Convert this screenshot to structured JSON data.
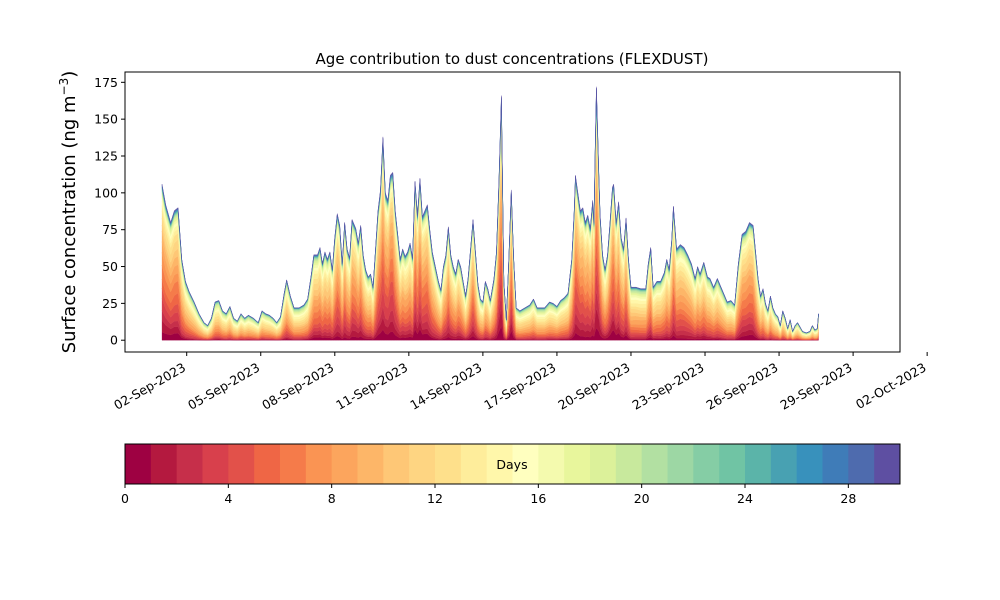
{
  "chart_data": {
    "type": "area",
    "stacked": true,
    "title": "Age contribution to dust concentrations (FLEXDUST)",
    "ylabel_main": "Surface concentration (ng m",
    "ylabel_sup": "−3",
    "ylabel_close": ")",
    "xlabel": "",
    "ylim": [
      -8,
      182
    ],
    "xlim": [
      -1.5,
      29.9
    ],
    "yticks": [
      0,
      25,
      50,
      75,
      100,
      125,
      150,
      175
    ],
    "xtick_positions": [
      1,
      4,
      7,
      10,
      13,
      16,
      19,
      22,
      25,
      28,
      31
    ],
    "xtick_labels": [
      "02-Sep-2023",
      "05-Sep-2023",
      "08-Sep-2023",
      "11-Sep-2023",
      "14-Sep-2023",
      "17-Sep-2023",
      "20-Sep-2023",
      "23-Sep-2023",
      "26-Sep-2023",
      "29-Sep-2023",
      "02-Oct-2023"
    ],
    "x_unit": "days since 01-Sep-2023",
    "grid": false,
    "total": [
      [
        0.0,
        106
      ],
      [
        0.15,
        92
      ],
      [
        0.35,
        80
      ],
      [
        0.5,
        88
      ],
      [
        0.65,
        90
      ],
      [
        0.8,
        55
      ],
      [
        0.95,
        40
      ],
      [
        1.1,
        33
      ],
      [
        1.3,
        26
      ],
      [
        1.5,
        18
      ],
      [
        1.7,
        12
      ],
      [
        1.85,
        10
      ],
      [
        2.0,
        15
      ],
      [
        2.15,
        26
      ],
      [
        2.3,
        27
      ],
      [
        2.45,
        20
      ],
      [
        2.6,
        18
      ],
      [
        2.75,
        23
      ],
      [
        2.9,
        15
      ],
      [
        3.05,
        13
      ],
      [
        3.2,
        18
      ],
      [
        3.35,
        15
      ],
      [
        3.5,
        17
      ],
      [
        3.7,
        15
      ],
      [
        3.9,
        12
      ],
      [
        4.05,
        20
      ],
      [
        4.2,
        18
      ],
      [
        4.35,
        17
      ],
      [
        4.5,
        15
      ],
      [
        4.65,
        12
      ],
      [
        4.8,
        16
      ],
      [
        4.95,
        32
      ],
      [
        5.05,
        41
      ],
      [
        5.2,
        30
      ],
      [
        5.35,
        22
      ],
      [
        5.55,
        22
      ],
      [
        5.75,
        24
      ],
      [
        5.9,
        28
      ],
      [
        6.05,
        45
      ],
      [
        6.15,
        58
      ],
      [
        6.3,
        58
      ],
      [
        6.4,
        63
      ],
      [
        6.5,
        52
      ],
      [
        6.6,
        60
      ],
      [
        6.7,
        55
      ],
      [
        6.8,
        60
      ],
      [
        6.9,
        48
      ],
      [
        7.0,
        70
      ],
      [
        7.1,
        86
      ],
      [
        7.2,
        78
      ],
      [
        7.3,
        52
      ],
      [
        7.4,
        80
      ],
      [
        7.5,
        62
      ],
      [
        7.6,
        56
      ],
      [
        7.7,
        82
      ],
      [
        7.85,
        76
      ],
      [
        7.95,
        66
      ],
      [
        8.05,
        78
      ],
      [
        8.15,
        58
      ],
      [
        8.25,
        48
      ],
      [
        8.35,
        43
      ],
      [
        8.45,
        45
      ],
      [
        8.55,
        36
      ],
      [
        8.65,
        62
      ],
      [
        8.75,
        88
      ],
      [
        8.85,
        102
      ],
      [
        8.95,
        138
      ],
      [
        9.05,
        100
      ],
      [
        9.15,
        95
      ],
      [
        9.25,
        112
      ],
      [
        9.35,
        114
      ],
      [
        9.45,
        88
      ],
      [
        9.55,
        72
      ],
      [
        9.65,
        55
      ],
      [
        9.75,
        62
      ],
      [
        9.85,
        57
      ],
      [
        9.95,
        60
      ],
      [
        10.05,
        66
      ],
      [
        10.15,
        56
      ],
      [
        10.25,
        108
      ],
      [
        10.35,
        85
      ],
      [
        10.45,
        110
      ],
      [
        10.55,
        84
      ],
      [
        10.65,
        88
      ],
      [
        10.75,
        92
      ],
      [
        10.85,
        75
      ],
      [
        10.95,
        60
      ],
      [
        11.1,
        48
      ],
      [
        11.2,
        40
      ],
      [
        11.3,
        34
      ],
      [
        11.4,
        50
      ],
      [
        11.5,
        58
      ],
      [
        11.6,
        77
      ],
      [
        11.7,
        58
      ],
      [
        11.8,
        50
      ],
      [
        11.9,
        45
      ],
      [
        12.0,
        55
      ],
      [
        12.1,
        50
      ],
      [
        12.2,
        40
      ],
      [
        12.3,
        30
      ],
      [
        12.4,
        42
      ],
      [
        12.5,
        62
      ],
      [
        12.6,
        82
      ],
      [
        12.7,
        60
      ],
      [
        12.8,
        38
      ],
      [
        12.9,
        28
      ],
      [
        13.0,
        26
      ],
      [
        13.1,
        40
      ],
      [
        13.2,
        35
      ],
      [
        13.3,
        27
      ],
      [
        13.45,
        42
      ],
      [
        13.55,
        60
      ],
      [
        13.65,
        108
      ],
      [
        13.75,
        166
      ],
      [
        13.85,
        40
      ],
      [
        13.95,
        14
      ],
      [
        14.05,
        55
      ],
      [
        14.15,
        102
      ],
      [
        14.25,
        55
      ],
      [
        14.35,
        22
      ],
      [
        14.5,
        20
      ],
      [
        14.7,
        22
      ],
      [
        14.9,
        24
      ],
      [
        15.05,
        28
      ],
      [
        15.2,
        22
      ],
      [
        15.35,
        22
      ],
      [
        15.5,
        22
      ],
      [
        15.7,
        26
      ],
      [
        15.85,
        25
      ],
      [
        16.0,
        23
      ],
      [
        16.15,
        27
      ],
      [
        16.3,
        29
      ],
      [
        16.45,
        32
      ],
      [
        16.6,
        55
      ],
      [
        16.7,
        88
      ],
      [
        16.75,
        112
      ],
      [
        16.85,
        100
      ],
      [
        16.95,
        88
      ],
      [
        17.05,
        90
      ],
      [
        17.15,
        80
      ],
      [
        17.25,
        85
      ],
      [
        17.35,
        76
      ],
      [
        17.45,
        95
      ],
      [
        17.5,
        80
      ],
      [
        17.55,
        130
      ],
      [
        17.6,
        172
      ],
      [
        17.7,
        112
      ],
      [
        17.75,
        85
      ],
      [
        17.85,
        58
      ],
      [
        17.95,
        48
      ],
      [
        18.05,
        58
      ],
      [
        18.15,
        80
      ],
      [
        18.25,
        104
      ],
      [
        18.3,
        106
      ],
      [
        18.4,
        80
      ],
      [
        18.5,
        94
      ],
      [
        18.6,
        70
      ],
      [
        18.7,
        62
      ],
      [
        18.8,
        83
      ],
      [
        18.9,
        55
      ],
      [
        19.0,
        36
      ],
      [
        19.2,
        36
      ],
      [
        19.4,
        35
      ],
      [
        19.6,
        35
      ],
      [
        19.7,
        52
      ],
      [
        19.8,
        63
      ],
      [
        19.9,
        36
      ],
      [
        20.05,
        40
      ],
      [
        20.2,
        40
      ],
      [
        20.35,
        46
      ],
      [
        20.45,
        55
      ],
      [
        20.55,
        48
      ],
      [
        20.65,
        68
      ],
      [
        20.72,
        91
      ],
      [
        20.85,
        62
      ],
      [
        21.0,
        65
      ],
      [
        21.15,
        63
      ],
      [
        21.3,
        58
      ],
      [
        21.45,
        52
      ],
      [
        21.6,
        42
      ],
      [
        21.7,
        50
      ],
      [
        21.8,
        45
      ],
      [
        21.95,
        53
      ],
      [
        22.1,
        43
      ],
      [
        22.2,
        42
      ],
      [
        22.35,
        36
      ],
      [
        22.5,
        42
      ],
      [
        22.6,
        38
      ],
      [
        22.75,
        32
      ],
      [
        22.9,
        26
      ],
      [
        23.05,
        27
      ],
      [
        23.2,
        24
      ],
      [
        23.35,
        52
      ],
      [
        23.5,
        72
      ],
      [
        23.65,
        74
      ],
      [
        23.8,
        80
      ],
      [
        23.95,
        78
      ],
      [
        24.05,
        60
      ],
      [
        24.15,
        42
      ],
      [
        24.25,
        30
      ],
      [
        24.35,
        35
      ],
      [
        24.45,
        25
      ],
      [
        24.55,
        20
      ],
      [
        24.65,
        30
      ],
      [
        24.75,
        22
      ],
      [
        24.85,
        18
      ],
      [
        24.95,
        16
      ],
      [
        25.05,
        10
      ],
      [
        25.15,
        20
      ],
      [
        25.25,
        15
      ],
      [
        25.35,
        8
      ],
      [
        25.45,
        14
      ],
      [
        25.55,
        6
      ],
      [
        25.65,
        10
      ],
      [
        25.75,
        12
      ],
      [
        25.85,
        9
      ],
      [
        25.95,
        6
      ],
      [
        26.1,
        5
      ],
      [
        26.25,
        6
      ],
      [
        26.35,
        10
      ],
      [
        26.45,
        7
      ],
      [
        26.55,
        8
      ],
      [
        26.6,
        18
      ]
    ],
    "age_bands": [
      {
        "from": 0,
        "to": 1,
        "color": "#9e0142"
      },
      {
        "from": 1,
        "to": 2,
        "color": "#b4193f"
      },
      {
        "from": 2,
        "to": 3,
        "color": "#c62f4a"
      },
      {
        "from": 3,
        "to": 4,
        "color": "#d8404c"
      },
      {
        "from": 4,
        "to": 5,
        "color": "#e2514a"
      },
      {
        "from": 5,
        "to": 6,
        "color": "#ef6645"
      },
      {
        "from": 6,
        "to": 7,
        "color": "#f57b4a"
      },
      {
        "from": 7,
        "to": 8,
        "color": "#fa9453"
      },
      {
        "from": 8,
        "to": 9,
        "color": "#fca55d"
      },
      {
        "from": 9,
        "to": 10,
        "color": "#fdb668"
      },
      {
        "from": 10,
        "to": 11,
        "color": "#fec776"
      },
      {
        "from": 11,
        "to": 12,
        "color": "#fed582"
      },
      {
        "from": 12,
        "to": 13,
        "color": "#fee08b"
      },
      {
        "from": 13,
        "to": 14,
        "color": "#feed9b"
      },
      {
        "from": 14,
        "to": 15,
        "color": "#fff7aa"
      },
      {
        "from": 15,
        "to": 16,
        "color": "#ffffbf"
      },
      {
        "from": 16,
        "to": 17,
        "color": "#f4faae"
      },
      {
        "from": 17,
        "to": 18,
        "color": "#e8f69c"
      },
      {
        "from": 18,
        "to": 19,
        "color": "#dcf19a"
      },
      {
        "from": 19,
        "to": 20,
        "color": "#c8e99d"
      },
      {
        "from": 20,
        "to": 21,
        "color": "#b2e0a2"
      },
      {
        "from": 21,
        "to": 22,
        "color": "#9dd7a4"
      },
      {
        "from": 22,
        "to": 23,
        "color": "#85cda5"
      },
      {
        "from": 23,
        "to": 24,
        "color": "#70c4a4"
      },
      {
        "from": 24,
        "to": 25,
        "color": "#5bb4a9"
      },
      {
        "from": 25,
        "to": 26,
        "color": "#48a1b2"
      },
      {
        "from": 26,
        "to": 27,
        "color": "#3891bc"
      },
      {
        "from": 27,
        "to": 28,
        "color": "#3f7cb8"
      },
      {
        "from": 28,
        "to": 29,
        "color": "#4e6bae"
      },
      {
        "from": 29,
        "to": 30,
        "color": "#5e4fa2"
      }
    ],
    "colorbar": {
      "label": "Days",
      "range": [
        0,
        30
      ],
      "ticks": [
        0,
        4,
        8,
        12,
        16,
        20,
        24,
        28
      ]
    }
  }
}
